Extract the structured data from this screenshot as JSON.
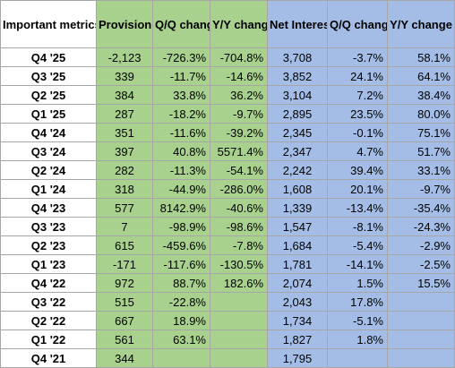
{
  "headers": {
    "metric": "Important metrics (in $ M)",
    "provision": "Provision for credit losses",
    "prov_qq": "Q/Q change",
    "prov_yy": "Y/Y change",
    "nii": "Net Interest Income",
    "nii_qq": "Q/Q change",
    "nii_yy": "Y/Y change"
  },
  "colors": {
    "green": "#a9d18e",
    "blue": "#a4bde6"
  },
  "rows": [
    {
      "q": "Q4 '25",
      "prov": "-2,123",
      "pqq": "-726.3%",
      "pyy": "-704.8%",
      "nii": "3,708",
      "nqq": "-3.7%",
      "nyy": "58.1%"
    },
    {
      "q": "Q3 '25",
      "prov": "339",
      "pqq": "-11.7%",
      "pyy": "-14.6%",
      "nii": "3,852",
      "nqq": "24.1%",
      "nyy": "64.1%"
    },
    {
      "q": "Q2 '25",
      "prov": "384",
      "pqq": "33.8%",
      "pyy": "36.2%",
      "nii": "3,104",
      "nqq": "7.2%",
      "nyy": "38.4%"
    },
    {
      "q": "Q1 '25",
      "prov": "287",
      "pqq": "-18.2%",
      "pyy": "-9.7%",
      "nii": "2,895",
      "nqq": "23.5%",
      "nyy": "80.0%"
    },
    {
      "q": "Q4 '24",
      "prov": "351",
      "pqq": "-11.6%",
      "pyy": "-39.2%",
      "nii": "2,345",
      "nqq": "-0.1%",
      "nyy": "75.1%"
    },
    {
      "q": "Q3 '24",
      "prov": "397",
      "pqq": "40.8%",
      "pyy": "5571.4%",
      "nii": "2,347",
      "nqq": "4.7%",
      "nyy": "51.7%"
    },
    {
      "q": "Q2 '24",
      "prov": "282",
      "pqq": "-11.3%",
      "pyy": "-54.1%",
      "nii": "2,242",
      "nqq": "39.4%",
      "nyy": "33.1%"
    },
    {
      "q": "Q1 '24",
      "prov": "318",
      "pqq": "-44.9%",
      "pyy": "-286.0%",
      "nii": "1,608",
      "nqq": "20.1%",
      "nyy": "-9.7%"
    },
    {
      "q": "Q4 '23",
      "prov": "577",
      "pqq": "8142.9%",
      "pyy": "-40.6%",
      "nii": "1,339",
      "nqq": "-13.4%",
      "nyy": "-35.4%"
    },
    {
      "q": "Q3 '23",
      "prov": "7",
      "pqq": "-98.9%",
      "pyy": "-98.6%",
      "nii": "1,547",
      "nqq": "-8.1%",
      "nyy": "-24.3%"
    },
    {
      "q": "Q2 '23",
      "prov": "615",
      "pqq": "-459.6%",
      "pyy": "-7.8%",
      "nii": "1,684",
      "nqq": "-5.4%",
      "nyy": "-2.9%"
    },
    {
      "q": "Q1 '23",
      "prov": "-171",
      "pqq": "-117.6%",
      "pyy": "-130.5%",
      "nii": "1,781",
      "nqq": "-14.1%",
      "nyy": "-2.5%"
    },
    {
      "q": "Q4 '22",
      "prov": "972",
      "pqq": "88.7%",
      "pyy": "182.6%",
      "nii": "2,074",
      "nqq": "1.5%",
      "nyy": "15.5%"
    },
    {
      "q": "Q3 '22",
      "prov": "515",
      "pqq": "-22.8%",
      "pyy": "",
      "nii": "2,043",
      "nqq": "17.8%",
      "nyy": ""
    },
    {
      "q": "Q2 '22",
      "prov": "667",
      "pqq": "18.9%",
      "pyy": "",
      "nii": "1,734",
      "nqq": "-5.1%",
      "nyy": ""
    },
    {
      "q": "Q1 '22",
      "prov": "561",
      "pqq": "63.1%",
      "pyy": "",
      "nii": "1,827",
      "nqq": "1.8%",
      "nyy": ""
    },
    {
      "q": "Q4 '21",
      "prov": "344",
      "pqq": "",
      "pyy": "",
      "nii": "1,795",
      "nqq": "",
      "nyy": ""
    }
  ]
}
